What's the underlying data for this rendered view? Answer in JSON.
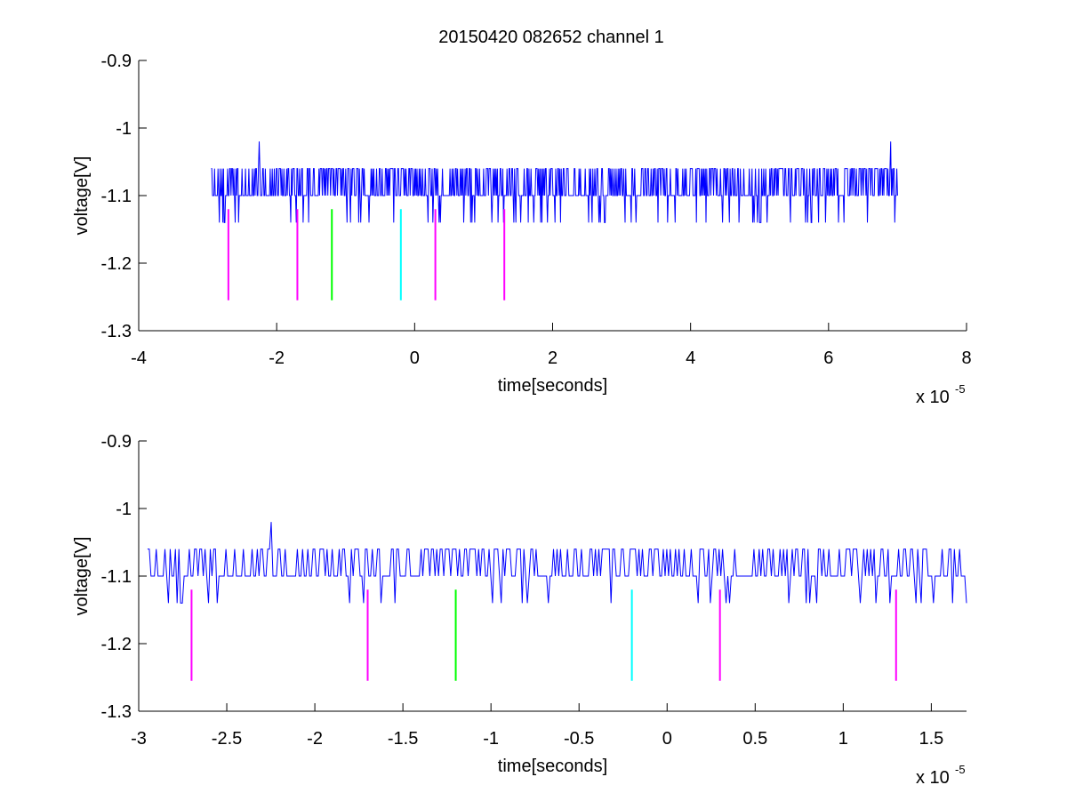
{
  "figure": {
    "title": "20150420 082652 channel 1",
    "colors": {
      "signal": "#0000ff",
      "magenta": "#ff00ff",
      "green": "#00ff00",
      "cyan": "#00ffff",
      "axes": "#000000"
    }
  },
  "chart_data": [
    {
      "type": "line",
      "title": "20150420 082652 channel 1",
      "xlabel": "time[seconds]",
      "ylabel": "voltage[V]",
      "x_exponent_label": "x 10",
      "x_exponent_power": "-5",
      "xlim": [
        -4,
        8
      ],
      "ylim": [
        -1.3,
        -0.9
      ],
      "ylim_reversed": true,
      "grid": false,
      "xticks": [
        -4,
        -2,
        0,
        2,
        4,
        6,
        8
      ],
      "xtick_labels": [
        "-4",
        "-2",
        "0",
        "2",
        "4",
        "6",
        "8"
      ],
      "yticks": [
        -0.9,
        -1,
        -1.1,
        -1.2,
        -1.3
      ],
      "ytick_labels": [
        "-0.9",
        "-1",
        "-1.1",
        "-1.2",
        "-1.3"
      ],
      "series": [
        {
          "color": "#0000ff",
          "x_range": [
            -2.95,
            7.0
          ],
          "baseline": -1.1,
          "levels": [
            -1.06,
            -1.1,
            -1.14
          ],
          "spikes": [
            [
              -2.25,
              -1.02
            ],
            [
              6.9,
              -1.02
            ]
          ]
        }
      ],
      "markers": [
        {
          "x": -2.7,
          "y_top": -1.12,
          "y_bottom": -1.255,
          "color": "#ff00ff"
        },
        {
          "x": -1.7,
          "y_top": -1.12,
          "y_bottom": -1.255,
          "color": "#ff00ff"
        },
        {
          "x": -1.2,
          "y_top": -1.12,
          "y_bottom": -1.255,
          "color": "#00ff00"
        },
        {
          "x": -0.2,
          "y_top": -1.12,
          "y_bottom": -1.255,
          "color": "#00ffff"
        },
        {
          "x": 0.3,
          "y_top": -1.12,
          "y_bottom": -1.255,
          "color": "#ff00ff"
        },
        {
          "x": 1.3,
          "y_top": -1.12,
          "y_bottom": -1.255,
          "color": "#ff00ff"
        }
      ]
    },
    {
      "type": "line",
      "title": "",
      "xlabel": "time[seconds]",
      "ylabel": "voltage[V]",
      "x_exponent_label": "x 10",
      "x_exponent_power": "-5",
      "xlim": [
        -3.0,
        1.7
      ],
      "ylim": [
        -1.3,
        -0.9
      ],
      "ylim_reversed": true,
      "grid": false,
      "xticks": [
        -3,
        -2.5,
        -2,
        -1.5,
        -1,
        -0.5,
        0,
        0.5,
        1,
        1.5
      ],
      "xtick_labels": [
        "-3",
        "-2.5",
        "-2",
        "-1.5",
        "-1",
        "-0.5",
        "0",
        "0.5",
        "1",
        "1.5"
      ],
      "yticks": [
        -0.9,
        -1,
        -1.1,
        -1.2,
        -1.3
      ],
      "ytick_labels": [
        "-0.9",
        "-1",
        "-1.1",
        "-1.2",
        "-1.3"
      ],
      "series": [
        {
          "color": "#0000ff",
          "x_range": [
            -2.95,
            1.7
          ],
          "baseline": -1.1,
          "levels": [
            -1.06,
            -1.1,
            -1.14
          ],
          "spikes": [
            [
              -2.25,
              -1.02
            ]
          ]
        }
      ],
      "markers": [
        {
          "x": -2.7,
          "y_top": -1.12,
          "y_bottom": -1.255,
          "color": "#ff00ff"
        },
        {
          "x": -1.7,
          "y_top": -1.12,
          "y_bottom": -1.255,
          "color": "#ff00ff"
        },
        {
          "x": -1.2,
          "y_top": -1.12,
          "y_bottom": -1.255,
          "color": "#00ff00"
        },
        {
          "x": -0.2,
          "y_top": -1.12,
          "y_bottom": -1.255,
          "color": "#00ffff"
        },
        {
          "x": 0.3,
          "y_top": -1.12,
          "y_bottom": -1.255,
          "color": "#ff00ff"
        },
        {
          "x": 1.3,
          "y_top": -1.12,
          "y_bottom": -1.255,
          "color": "#ff00ff"
        }
      ]
    }
  ]
}
